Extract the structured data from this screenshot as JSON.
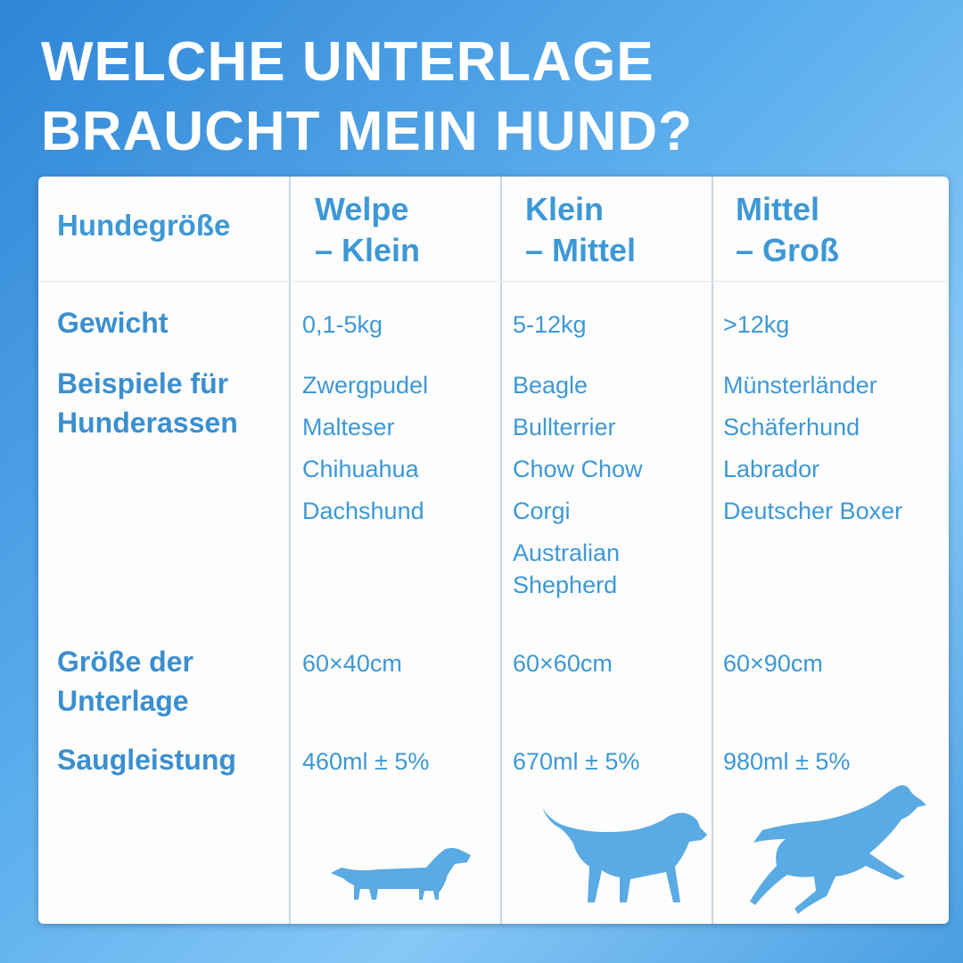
{
  "title": [
    "WELCHE UNTERLAGE",
    "BRAUCHT MEIN HUND?"
  ],
  "table": {
    "corner": "Hundegröße",
    "columns": [
      [
        "Welpe",
        "– Klein"
      ],
      [
        "Klein",
        "– Mittel"
      ],
      [
        "Mittel",
        "– Groß"
      ]
    ],
    "rows": [
      {
        "label": [
          "Gewicht"
        ],
        "cells": [
          "0,1-5kg",
          "5-12kg",
          ">12kg"
        ]
      },
      {
        "label": [
          "Beispiele für",
          "Hunderassen"
        ],
        "cells": [
          [
            "Zwergpudel",
            "Malteser",
            "Chihuahua",
            "Dachshund"
          ],
          [
            "Beagle",
            "Bullterrier",
            "Chow Chow",
            "Corgi",
            "Australian Shepherd"
          ],
          [
            "Münsterländer",
            "Schäferhund",
            "Labrador",
            "Deutscher Boxer"
          ]
        ]
      },
      {
        "label": [
          "Größe der",
          "Unterlage"
        ],
        "cells": [
          "60×40cm",
          "60×60cm",
          "60×90cm"
        ]
      },
      {
        "label": [
          "Saugleistung"
        ],
        "cells": [
          "460ml ± 5%",
          "670ml ± 5%",
          "980ml ± 5%"
        ]
      }
    ]
  }
}
